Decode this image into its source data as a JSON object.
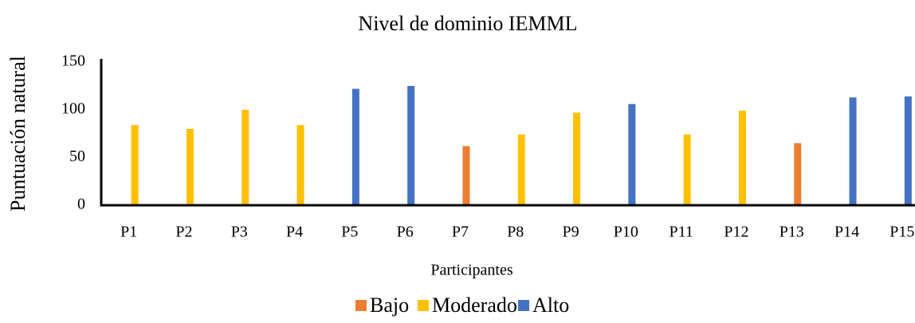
{
  "chart_data": {
    "type": "bar",
    "title": "Nivel de dominio IEMML",
    "x_label": "Participantes",
    "y_label": "Puntuación natural",
    "categories": [
      "P1",
      "P2",
      "P3",
      "P4",
      "P5",
      "P6",
      "P7",
      "P8",
      "P9",
      "P10",
      "P11",
      "P12",
      "P13",
      "P14",
      "P15"
    ],
    "series": [
      {
        "name": "Bajo",
        "color": "#ed7d31",
        "values": [
          null,
          null,
          null,
          null,
          null,
          null,
          62,
          null,
          null,
          null,
          null,
          null,
          65,
          null,
          null
        ]
      },
      {
        "name": "Moderado",
        "color": "#ffc000",
        "values": [
          84,
          80,
          100,
          84,
          null,
          null,
          null,
          74,
          97,
          null,
          74,
          99,
          null,
          null,
          null
        ]
      },
      {
        "name": "Alto",
        "color": "#4472c4",
        "values": [
          null,
          null,
          null,
          null,
          122,
          125,
          null,
          null,
          null,
          106,
          null,
          null,
          null,
          113,
          114
        ]
      }
    ],
    "ylim": [
      0,
      150
    ],
    "yticks": [
      0,
      50,
      100,
      150
    ],
    "grid": false,
    "legend": "bottom"
  }
}
